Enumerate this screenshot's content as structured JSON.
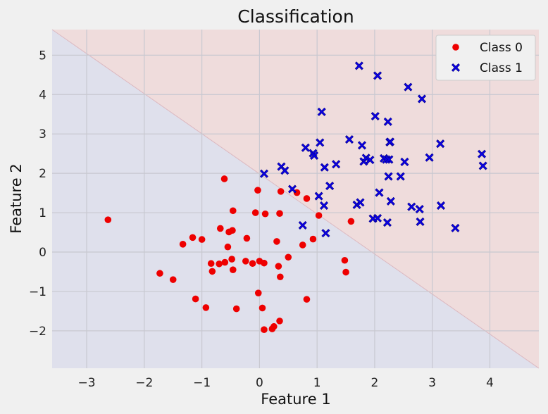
{
  "chart_data": {
    "type": "scatter",
    "title": "Classification",
    "xlabel": "Feature 1",
    "ylabel": "Feature 2",
    "xlim": [
      -3.6,
      4.85
    ],
    "ylim": [
      -2.95,
      5.65
    ],
    "xticks": [
      -3,
      -2,
      -1,
      0,
      1,
      2,
      3,
      4
    ],
    "yticks": [
      -2,
      -1,
      0,
      1,
      2,
      3,
      4,
      5
    ],
    "grid": true,
    "legend_position": "top-right",
    "decision_boundary": {
      "points": [
        [
          -3.6,
          5.65
        ],
        [
          4.85,
          -2.95
        ]
      ],
      "region_above_color": "#efdcdc",
      "region_below_color": "#dfe0ec",
      "line_color": "#dcb8c0"
    },
    "series": [
      {
        "name": "Class 0",
        "marker": "circle",
        "color": "#ee0000",
        "points": [
          [
            -2.63,
            0.82
          ],
          [
            -1.73,
            -0.54
          ],
          [
            -1.5,
            -0.7
          ],
          [
            -1.33,
            0.2
          ],
          [
            -1.16,
            0.37
          ],
          [
            -1.11,
            -1.19
          ],
          [
            -1.0,
            0.32
          ],
          [
            -0.93,
            -1.41
          ],
          [
            -0.84,
            -0.29
          ],
          [
            -0.82,
            -0.49
          ],
          [
            -0.7,
            -0.3
          ],
          [
            -0.68,
            0.6
          ],
          [
            -0.6,
            -0.26
          ],
          [
            -0.61,
            1.86
          ],
          [
            -0.55,
            0.13
          ],
          [
            -0.53,
            0.51
          ],
          [
            -0.47,
            0.55
          ],
          [
            -0.48,
            -0.18
          ],
          [
            -0.46,
            -0.45
          ],
          [
            -0.46,
            1.05
          ],
          [
            -0.4,
            -1.44
          ],
          [
            -0.24,
            -0.23
          ],
          [
            -0.22,
            0.35
          ],
          [
            -0.12,
            -0.29
          ],
          [
            -0.07,
            1.0
          ],
          [
            -0.03,
            1.57
          ],
          [
            -0.02,
            -1.04
          ],
          [
            0.0,
            -0.23
          ],
          [
            0.05,
            -1.42
          ],
          [
            0.08,
            -0.28
          ],
          [
            0.08,
            -1.97
          ],
          [
            0.1,
            0.97
          ],
          [
            0.22,
            -1.95
          ],
          [
            0.25,
            -1.89
          ],
          [
            0.3,
            0.27
          ],
          [
            0.33,
            -0.36
          ],
          [
            0.35,
            0.98
          ],
          [
            0.35,
            -1.75
          ],
          [
            0.36,
            -0.63
          ],
          [
            0.37,
            1.54
          ],
          [
            0.5,
            -0.13
          ],
          [
            0.65,
            1.51
          ],
          [
            0.75,
            0.18
          ],
          [
            0.82,
            1.36
          ],
          [
            0.82,
            -1.2
          ],
          [
            0.93,
            0.33
          ],
          [
            1.03,
            0.93
          ],
          [
            1.48,
            -0.21
          ],
          [
            1.5,
            -0.51
          ],
          [
            1.59,
            0.78
          ]
        ]
      },
      {
        "name": "Class 1",
        "marker": "x",
        "color": "#0a00e6",
        "points": [
          [
            0.08,
            1.99
          ],
          [
            0.38,
            2.17
          ],
          [
            0.44,
            2.07
          ],
          [
            0.57,
            1.6
          ],
          [
            0.75,
            0.68
          ],
          [
            0.8,
            2.65
          ],
          [
            0.93,
            2.51
          ],
          [
            0.95,
            2.45
          ],
          [
            1.03,
            1.42
          ],
          [
            1.05,
            2.78
          ],
          [
            1.08,
            3.56
          ],
          [
            1.12,
            1.18
          ],
          [
            1.13,
            2.15
          ],
          [
            1.15,
            0.48
          ],
          [
            1.22,
            1.68
          ],
          [
            1.33,
            2.23
          ],
          [
            1.56,
            2.86
          ],
          [
            1.69,
            1.2
          ],
          [
            1.73,
            4.73
          ],
          [
            1.75,
            1.26
          ],
          [
            1.78,
            2.71
          ],
          [
            1.81,
            2.3
          ],
          [
            1.85,
            2.39
          ],
          [
            1.92,
            2.34
          ],
          [
            1.97,
            0.85
          ],
          [
            2.01,
            3.45
          ],
          [
            2.05,
            4.48
          ],
          [
            2.05,
            0.86
          ],
          [
            2.08,
            1.51
          ],
          [
            2.16,
            2.38
          ],
          [
            2.2,
            2.35
          ],
          [
            2.22,
            0.75
          ],
          [
            2.24,
            1.92
          ],
          [
            2.25,
            2.35
          ],
          [
            2.26,
            2.79
          ],
          [
            2.27,
            2.8
          ],
          [
            2.28,
            1.29
          ],
          [
            2.23,
            3.31
          ],
          [
            2.45,
            1.92
          ],
          [
            2.52,
            2.29
          ],
          [
            2.58,
            4.19
          ],
          [
            2.64,
            1.15
          ],
          [
            2.78,
            1.09
          ],
          [
            2.79,
            0.77
          ],
          [
            2.82,
            3.89
          ],
          [
            2.95,
            2.4
          ],
          [
            3.14,
            2.75
          ],
          [
            3.15,
            1.18
          ],
          [
            3.4,
            0.61
          ],
          [
            3.86,
            2.49
          ],
          [
            3.88,
            2.19
          ]
        ]
      }
    ]
  }
}
